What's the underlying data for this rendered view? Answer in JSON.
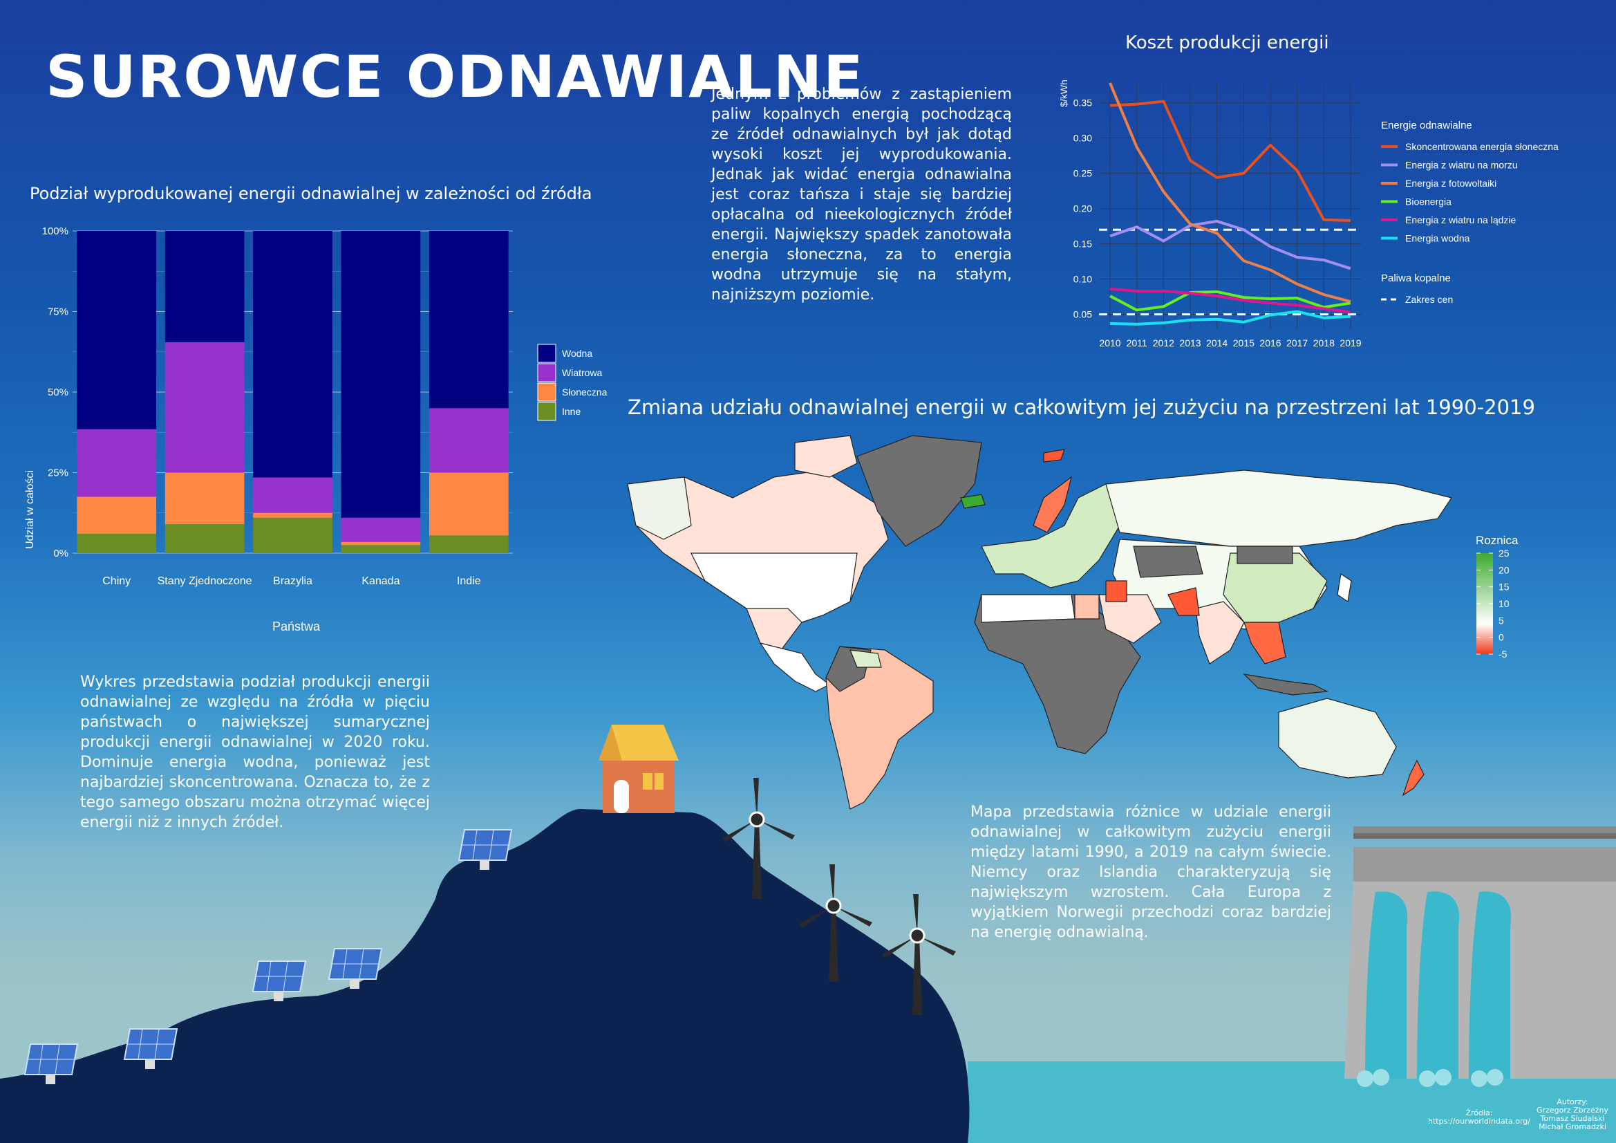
{
  "page": {
    "title": "SUROWCE ODNAWIALNE",
    "para_cost": "Jednym z problemów z zastąpieniem paliw kopalnych energią pochodzącą ze źródeł odnawialnych był jak dotąd wysoki koszt jej wyprodukowania. Jednak jak widać energia odnawialna jest coraz tańsza i staje się bardziej opłacalna od nieekologicznych źródeł energii. Największy spadek zanotowała energia słoneczna, za to energia wodna utrzymuje się na stałym, najniższym poziomie.",
    "para_bar": "Wykres przedstawia podział produkcji energii odnawialnej ze względu na źródła w pięciu państwach o największej sumarycznej produkcji energii odnawialnej w 2020 roku. Dominuje energia wodna, ponieważ jest najbardziej skoncentrowana. Oznacza to, że z tego samego obszaru można otrzymać więcej energii niż z innych źródeł.",
    "para_map": "Mapa przedstawia różnice w udziale energii odnawialnej w całkowitym zużyciu energii między latami 1990, a 2019 na całym świecie. Niemcy oraz Islandia charakteryzują się największym wzrostem. Cała Europa z wyjątkiem Norwegii przechodzi coraz bardziej na energię odnawialną.",
    "sources_label": "Źródła:",
    "sources_url": "https://ourworldindata.org/",
    "authors_label": "Autorzy:",
    "authors": [
      "Grzegorz Zbrzeżny",
      "Tomasz Siudalski",
      "Michał Gromadzki"
    ]
  },
  "chart_data": [
    {
      "type": "bar",
      "stacked": true,
      "title": "Podział wyprodukowanej energii odnawialnej w zależności od źródła",
      "xlabel": "Państwa",
      "ylabel": "Udział w całości",
      "categories": [
        "Chiny",
        "Stany Zjednoczone",
        "Brazylia",
        "Kanada",
        "Indie"
      ],
      "yticks": [
        "0%",
        "25%",
        "50%",
        "75%",
        "100%"
      ],
      "ylim": [
        0,
        1
      ],
      "series": [
        {
          "name": "Inne",
          "color": "#6b8e23",
          "values": [
            0.06,
            0.09,
            0.11,
            0.025,
            0.055
          ]
        },
        {
          "name": "Słoneczna",
          "color": "#ff8844",
          "values": [
            0.115,
            0.16,
            0.015,
            0.01,
            0.195
          ]
        },
        {
          "name": "Wiatrowa",
          "color": "#9932cc",
          "values": [
            0.21,
            0.405,
            0.11,
            0.075,
            0.2
          ]
        },
        {
          "name": "Wodna",
          "color": "#000080",
          "values": [
            0.615,
            0.345,
            0.765,
            0.89,
            0.55
          ]
        }
      ],
      "legend_order": [
        "Wodna",
        "Wiatrowa",
        "Słoneczna",
        "Inne"
      ],
      "legend_position": "right"
    },
    {
      "type": "line",
      "title": "Koszt produkcji energii",
      "ylabel": "$/kWh",
      "x": [
        2010,
        2011,
        2012,
        2013,
        2014,
        2015,
        2016,
        2017,
        2018,
        2019
      ],
      "yticks": [
        "0.05",
        "0.10",
        "0.15",
        "0.20",
        "0.25",
        "0.30",
        "0.35"
      ],
      "ylim": [
        0.03,
        0.38
      ],
      "legend_group1": "Energie odnawialne",
      "legend_group2": "Paliwa kopalne",
      "series": [
        {
          "name": "Skoncentrowana energia słoneczna",
          "color": "#e8501e",
          "values": [
            0.346,
            0.348,
            0.352,
            0.268,
            0.244,
            0.25,
            0.29,
            0.254,
            0.184,
            0.183
          ]
        },
        {
          "name": "Energia z wiatru na morzu",
          "color": "#a58ef0",
          "values": [
            0.161,
            0.174,
            0.154,
            0.176,
            0.182,
            0.17,
            0.146,
            0.131,
            0.127,
            0.115
          ]
        },
        {
          "name": "Energia z fotowoltaiki",
          "color": "#f07e47",
          "values": [
            0.378,
            0.287,
            0.224,
            0.178,
            0.165,
            0.126,
            0.113,
            0.093,
            0.078,
            0.068
          ]
        },
        {
          "name": "Bioenergia",
          "color": "#66ee22",
          "values": [
            0.076,
            0.056,
            0.061,
            0.081,
            0.082,
            0.074,
            0.072,
            0.073,
            0.06,
            0.066
          ]
        },
        {
          "name": "Energia z wiatru na lądzie",
          "color": "#e0168e",
          "values": [
            0.086,
            0.083,
            0.083,
            0.08,
            0.076,
            0.07,
            0.066,
            0.063,
            0.058,
            0.053
          ]
        },
        {
          "name": "Energia wodna",
          "color": "#18e0ee",
          "values": [
            0.037,
            0.036,
            0.038,
            0.042,
            0.043,
            0.039,
            0.049,
            0.054,
            0.045,
            0.047
          ]
        }
      ],
      "fossil_range": {
        "name": "Zakres cen",
        "low": 0.05,
        "high": 0.17,
        "color": "#ffffff"
      }
    }
  ],
  "map": {
    "title": "Zmiana udziału odnawialnej energii w całkowitym jej zużyciu na przestrzeni lat 1990-2019",
    "legend_title": "Roznica",
    "legend_ticks": [
      "25",
      "20",
      "15",
      "10",
      "5",
      "0",
      "-5"
    ],
    "colors": {
      "no_data": "#707070",
      "high": "#3caa2e",
      "mid": "#ffffff",
      "low": "#ee3a1a"
    }
  }
}
